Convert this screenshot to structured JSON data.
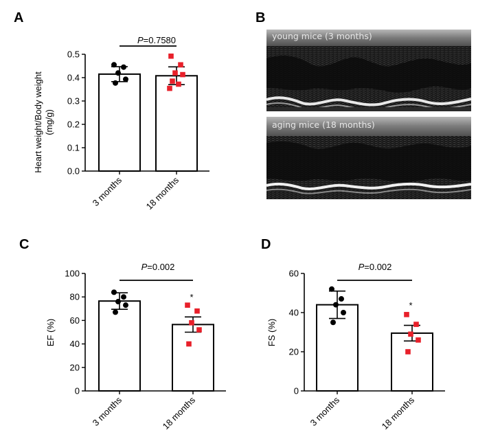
{
  "panels": {
    "A": {
      "letter": "A",
      "ylabel_line1": "Heart weight/Body weight",
      "ylabel_line2": "(mg/g)",
      "pvalue_prefix": "P",
      "pvalue_rest": "=0.7580",
      "significance": ""
    },
    "B": {
      "letter": "B",
      "young_label": "young mice (3 months)",
      "aging_label": "aging mice (18 months)"
    },
    "C": {
      "letter": "C",
      "ylabel": "EF (%)",
      "pvalue_prefix": "P",
      "pvalue_rest": "=0.002",
      "significance": "*"
    },
    "D": {
      "letter": "D",
      "ylabel": "FS (%)",
      "pvalue_prefix": "P",
      "pvalue_rest": "=0.002",
      "significance": "*"
    }
  },
  "colors": {
    "group_3_months": "#000000",
    "group_18_months": "#e8202a",
    "bar_fill": "#ffffff",
    "bar_stroke": "#000000"
  },
  "chart_data": [
    {
      "id": "A",
      "type": "bar",
      "categories": [
        "3 months",
        "18 months"
      ],
      "values": [
        0.415,
        0.408
      ],
      "error_sd": [
        0.032,
        0.038
      ],
      "points": [
        [
          0.455,
          0.445,
          0.42,
          0.393,
          0.377
        ],
        [
          0.492,
          0.455,
          0.42,
          0.413,
          0.385,
          0.372,
          0.354
        ]
      ],
      "ylim": [
        0,
        0.5
      ],
      "yticks": [
        "0.0",
        "0.1",
        "0.2",
        "0.3",
        "0.4",
        "0.5"
      ],
      "ytick_values": [
        0,
        0.1,
        0.2,
        0.3,
        0.4,
        0.5
      ],
      "xlabel": "",
      "ylabel": "Heart weight/Body weight (mg/g)"
    },
    {
      "id": "C",
      "type": "bar",
      "categories": [
        "3 months",
        "18 months"
      ],
      "values": [
        76.5,
        56.5
      ],
      "error_sd": [
        7,
        6.5
      ],
      "points": [
        [
          84,
          80,
          76,
          73,
          67
        ],
        [
          73,
          68,
          58,
          52,
          40
        ]
      ],
      "ylim": [
        0,
        100
      ],
      "yticks": [
        "0",
        "20",
        "40",
        "60",
        "80",
        "100"
      ],
      "ytick_values": [
        0,
        20,
        40,
        60,
        80,
        100
      ],
      "xlabel": "",
      "ylabel": "EF (%)"
    },
    {
      "id": "D",
      "type": "bar",
      "categories": [
        "3 months",
        "18 months"
      ],
      "values": [
        44,
        29.5
      ],
      "error_sd": [
        7,
        4
      ],
      "points": [
        [
          52,
          47,
          44,
          40,
          35
        ],
        [
          39,
          34,
          29,
          26,
          20
        ]
      ],
      "ylim": [
        0,
        60
      ],
      "yticks": [
        "0",
        "20",
        "40",
        "60"
      ],
      "ytick_values": [
        0,
        20,
        40,
        60
      ],
      "xlabel": "",
      "ylabel": "FS (%)"
    }
  ]
}
